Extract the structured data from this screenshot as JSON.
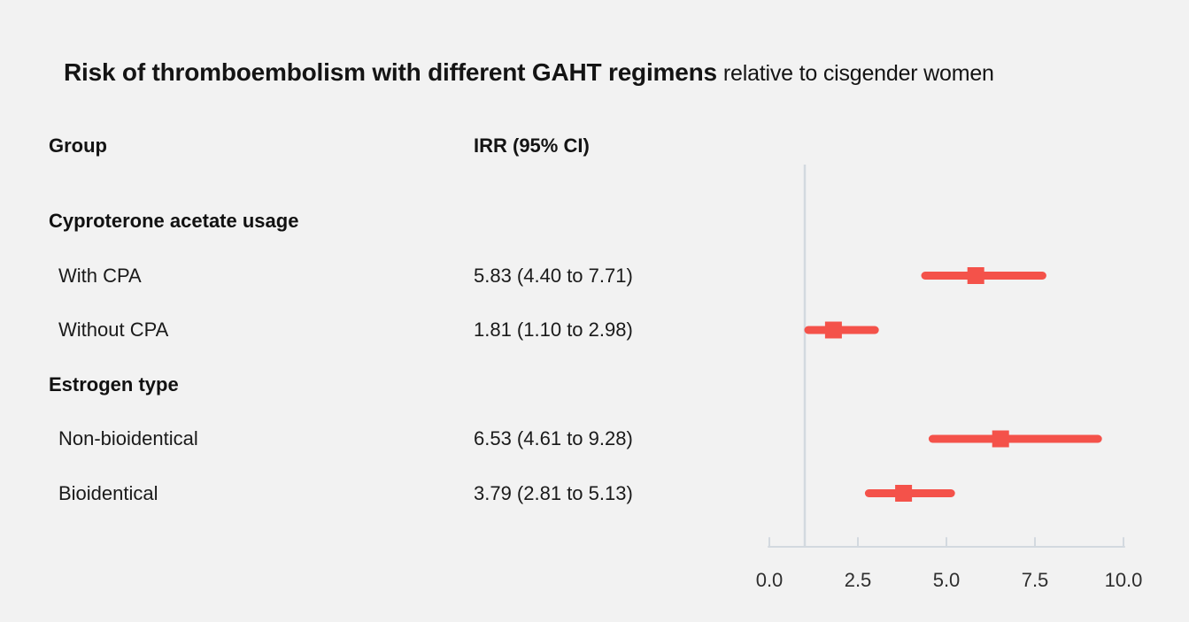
{
  "title": {
    "main": "Risk of thromboembolism with different GAHT regimens",
    "suffix": "relative to cisgender women"
  },
  "columns": {
    "group": "Group",
    "irr": "IRR (95% CI)"
  },
  "chart_data": {
    "type": "forest",
    "title": "Risk of thromboembolism with different GAHT regimens relative to cisgender women",
    "xlabel": "",
    "xlim": [
      0,
      10
    ],
    "x_tick_labels": [
      "0.0",
      "2.5",
      "5.0",
      "7.5",
      "10.0"
    ],
    "x_tick_values": [
      0,
      2.5,
      5,
      7.5,
      10
    ],
    "reference_line_x": 1.0,
    "grid": false,
    "rows": [
      {
        "kind": "section",
        "label": "Cyproterone acetate usage",
        "irr_text": "",
        "est": null,
        "lo": null,
        "hi": null
      },
      {
        "kind": "item",
        "label": "With CPA",
        "irr_text": "5.83 (4.40 to 7.71)",
        "est": 5.83,
        "lo": 4.4,
        "hi": 7.71
      },
      {
        "kind": "item",
        "label": "Without CPA",
        "irr_text": "1.81 (1.10 to 2.98)",
        "est": 1.81,
        "lo": 1.1,
        "hi": 2.98
      },
      {
        "kind": "section",
        "label": "Estrogen type",
        "irr_text": "",
        "est": null,
        "lo": null,
        "hi": null
      },
      {
        "kind": "item",
        "label": "Non-bioidentical",
        "irr_text": "6.53 (4.61 to 9.28)",
        "est": 6.53,
        "lo": 4.61,
        "hi": 9.28
      },
      {
        "kind": "item",
        "label": "Bioidentical",
        "irr_text": "3.79 (2.81 to 5.13)",
        "est": 3.79,
        "lo": 2.81,
        "hi": 5.13
      }
    ],
    "colors": {
      "marker": "#f4524a",
      "axis": "#d3d9df",
      "reference_line": "#d3d9df",
      "background": "#f2f2f2",
      "text": "#1a1a1a",
      "tick_label": "#2e2e2e"
    }
  }
}
